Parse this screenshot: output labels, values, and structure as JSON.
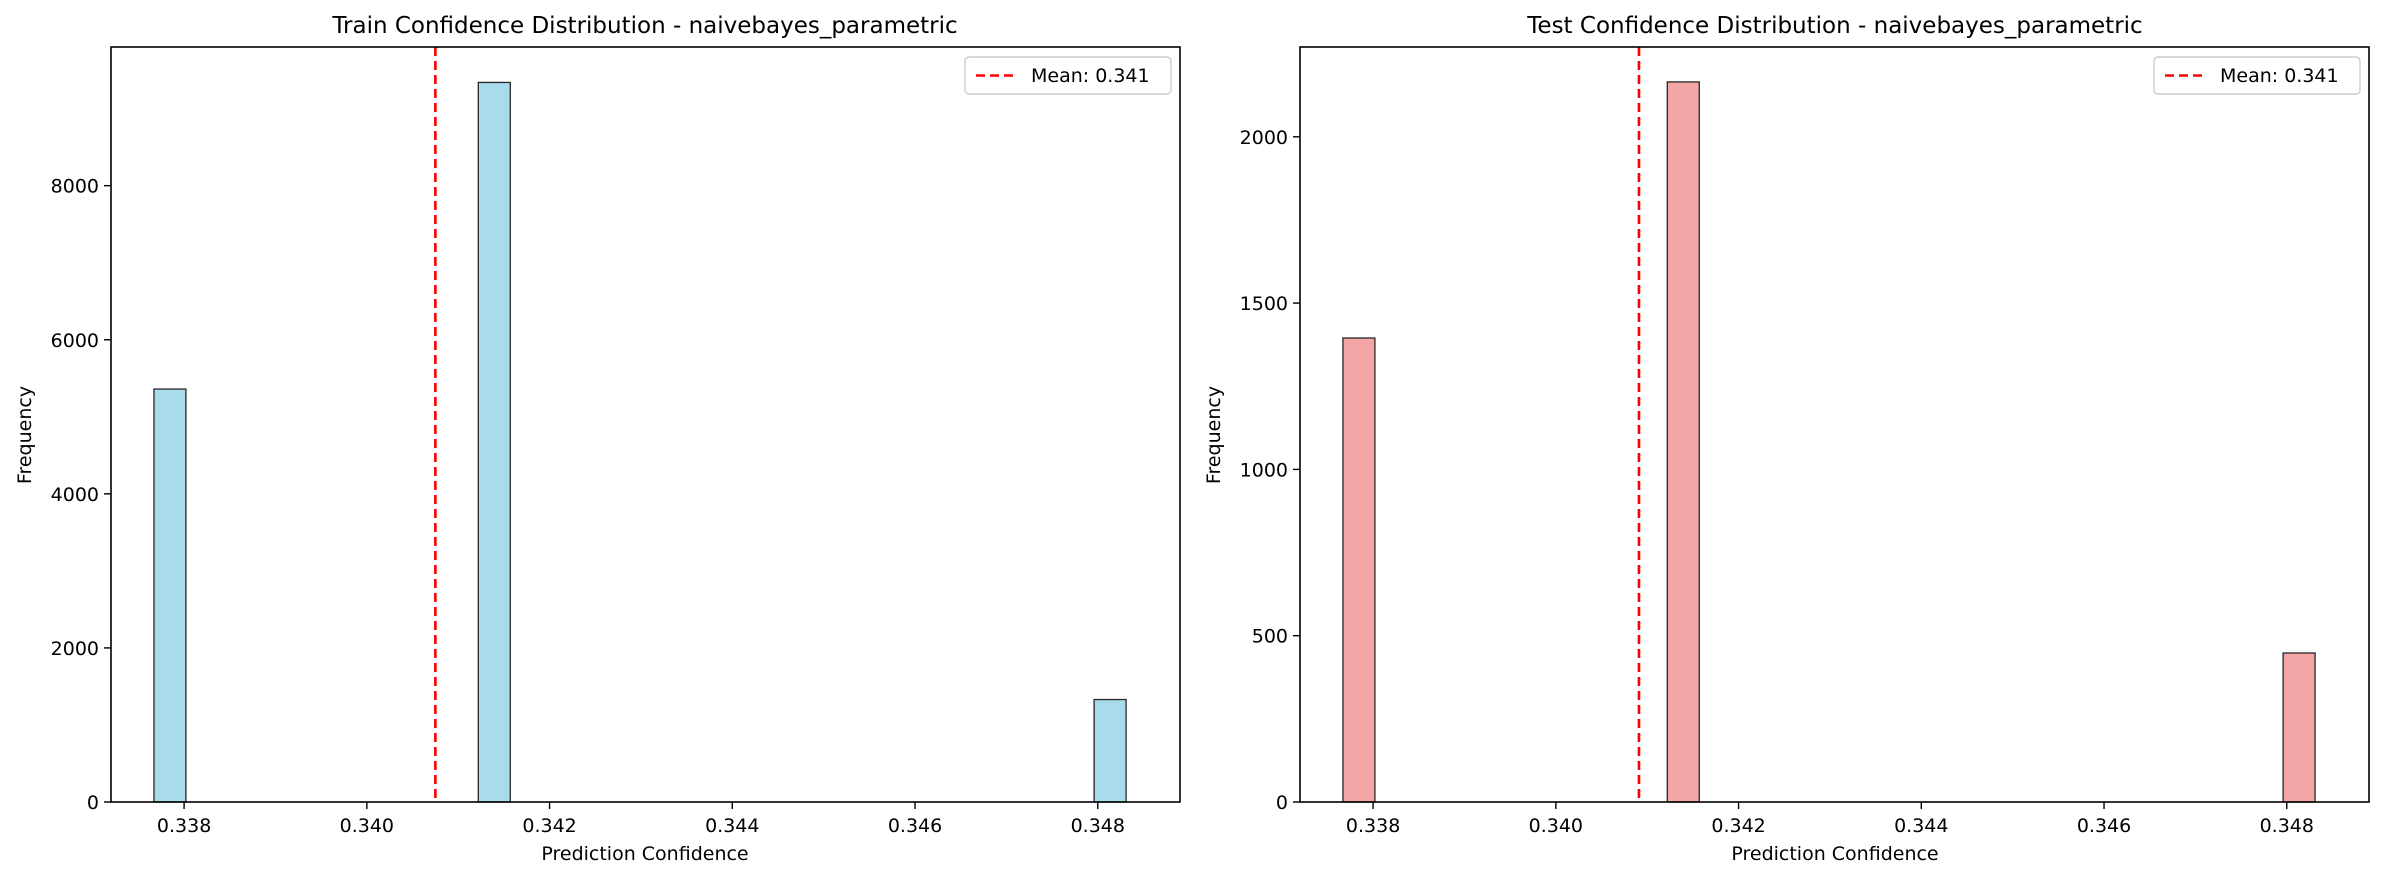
{
  "colors": {
    "train_bar": "#a8dcec",
    "test_bar": "#f4a6a6",
    "mean_line": "#ff0000",
    "edge": "#262626"
  },
  "chart_data": [
    {
      "type": "bar",
      "title": "Train Confidence Distribution - naivebayes_parametric",
      "xlabel": "Prediction Confidence",
      "ylabel": "Frequency",
      "xlim": [
        0.3372,
        0.3489
      ],
      "ylim": [
        0,
        9800
      ],
      "xticks": [
        0.338,
        0.34,
        0.342,
        0.344,
        0.346,
        0.348
      ],
      "xtick_labels": [
        "0.338",
        "0.340",
        "0.342",
        "0.344",
        "0.346",
        "0.348"
      ],
      "yticks": [
        0,
        2000,
        4000,
        6000,
        8000
      ],
      "ytick_labels": [
        "0",
        "2000",
        "4000",
        "6000",
        "8000"
      ],
      "bars": [
        {
          "x0": 0.33767,
          "x1": 0.33802,
          "value": 5360
        },
        {
          "x0": 0.34122,
          "x1": 0.34157,
          "value": 9340
        },
        {
          "x0": 0.34796,
          "x1": 0.34831,
          "value": 1330
        }
      ],
      "mean": 0.34075,
      "legend": {
        "label": "Mean: 0.341",
        "position": "top-right"
      },
      "bar_color": "#a8dcec"
    },
    {
      "type": "bar",
      "title": "Test Confidence Distribution - naivebayes_parametric",
      "xlabel": "Prediction Confidence",
      "ylabel": "Frequency",
      "xlim": [
        0.3372,
        0.3489
      ],
      "ylim": [
        0,
        2270
      ],
      "xticks": [
        0.338,
        0.34,
        0.342,
        0.344,
        0.346,
        0.348
      ],
      "xtick_labels": [
        "0.338",
        "0.340",
        "0.342",
        "0.344",
        "0.346",
        "0.348"
      ],
      "yticks": [
        0,
        500,
        1000,
        1500,
        2000
      ],
      "ytick_labels": [
        "0",
        "500",
        "1000",
        "1500",
        "2000"
      ],
      "bars": [
        {
          "x0": 0.33767,
          "x1": 0.33802,
          "value": 1395
        },
        {
          "x0": 0.34122,
          "x1": 0.34157,
          "value": 2165
        },
        {
          "x0": 0.34796,
          "x1": 0.34831,
          "value": 448
        }
      ],
      "mean": 0.34091,
      "legend": {
        "label": "Mean: 0.341",
        "position": "top-right"
      },
      "bar_color": "#f4a6a6"
    }
  ]
}
